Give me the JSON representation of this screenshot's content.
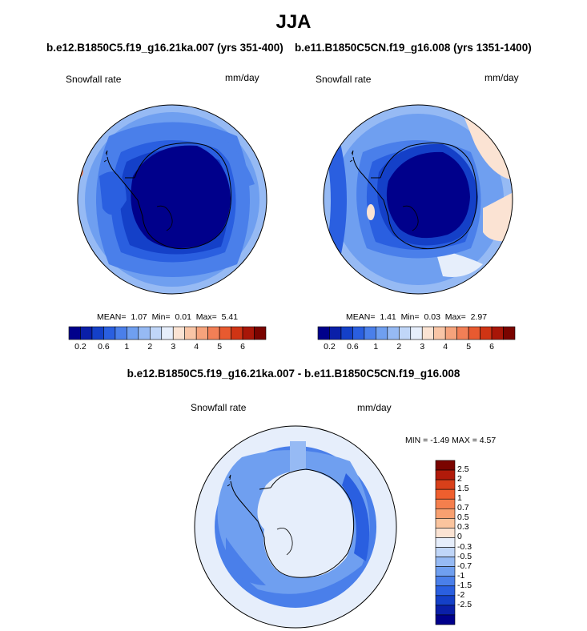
{
  "title": "JJA",
  "panel_left": {
    "header": "b.e12.B1850C5.f19_g16.21ka.007 (yrs 351-400)",
    "variable": "Snowfall rate",
    "units": "mm/day",
    "stats": {
      "mean_label": "MEAN=",
      "mean": "1.07",
      "min_label": "Min=",
      "min": "0.01",
      "max_label": "Max=",
      "max": "5.41"
    }
  },
  "panel_right": {
    "header": "b.e11.B1850C5CN.f19_g16.008 (yrs 1351-1400)",
    "variable": "Snowfall rate",
    "units": "mm/day",
    "stats": {
      "mean_label": "MEAN=",
      "mean": "1.41",
      "min_label": "Min=",
      "min": "0.03",
      "max_label": "Max=",
      "max": "2.97"
    }
  },
  "panel_diff": {
    "header": "b.e12.B1850C5.f19_g16.21ka.007 - b.e11.B1850C5CN.f19_g16.008",
    "variable": "Snowfall rate",
    "units": "mm/day",
    "minmax": "MIN =  -1.49 MAX =   4.57"
  },
  "colorbar_abs": {
    "colors": [
      "#00008b",
      "#0a1fa8",
      "#1440c8",
      "#2a5fe0",
      "#4a7fea",
      "#6f9ff0",
      "#96baf4",
      "#c0d6f8",
      "#e6eefb",
      "#fbe3d3",
      "#f9c5a6",
      "#f6a37c",
      "#f27f56",
      "#e85a30",
      "#cf3414",
      "#a81608",
      "#7a0400"
    ],
    "tick_labels": [
      "0.2",
      "0.6",
      "1",
      "2",
      "3",
      "4",
      "5",
      "6"
    ]
  },
  "colorbar_diff": {
    "colors": [
      "#7a0400",
      "#b11a0a",
      "#d8401a",
      "#ef5f2e",
      "#f57f4d",
      "#f8a070",
      "#fac49e",
      "#fbe3d3",
      "#e6eefb",
      "#c0d6f8",
      "#96baf4",
      "#6f9ff0",
      "#4a7fea",
      "#2a5fe0",
      "#1440c8",
      "#0a1fa8",
      "#00008b"
    ],
    "tick_labels": [
      "2.5",
      "2",
      "1.5",
      "1",
      "0.7",
      "0.5",
      "0.3",
      "0",
      "-0.3",
      "-0.5",
      "-0.7",
      "-1",
      "-1.5",
      "-2",
      "-2.5"
    ]
  }
}
